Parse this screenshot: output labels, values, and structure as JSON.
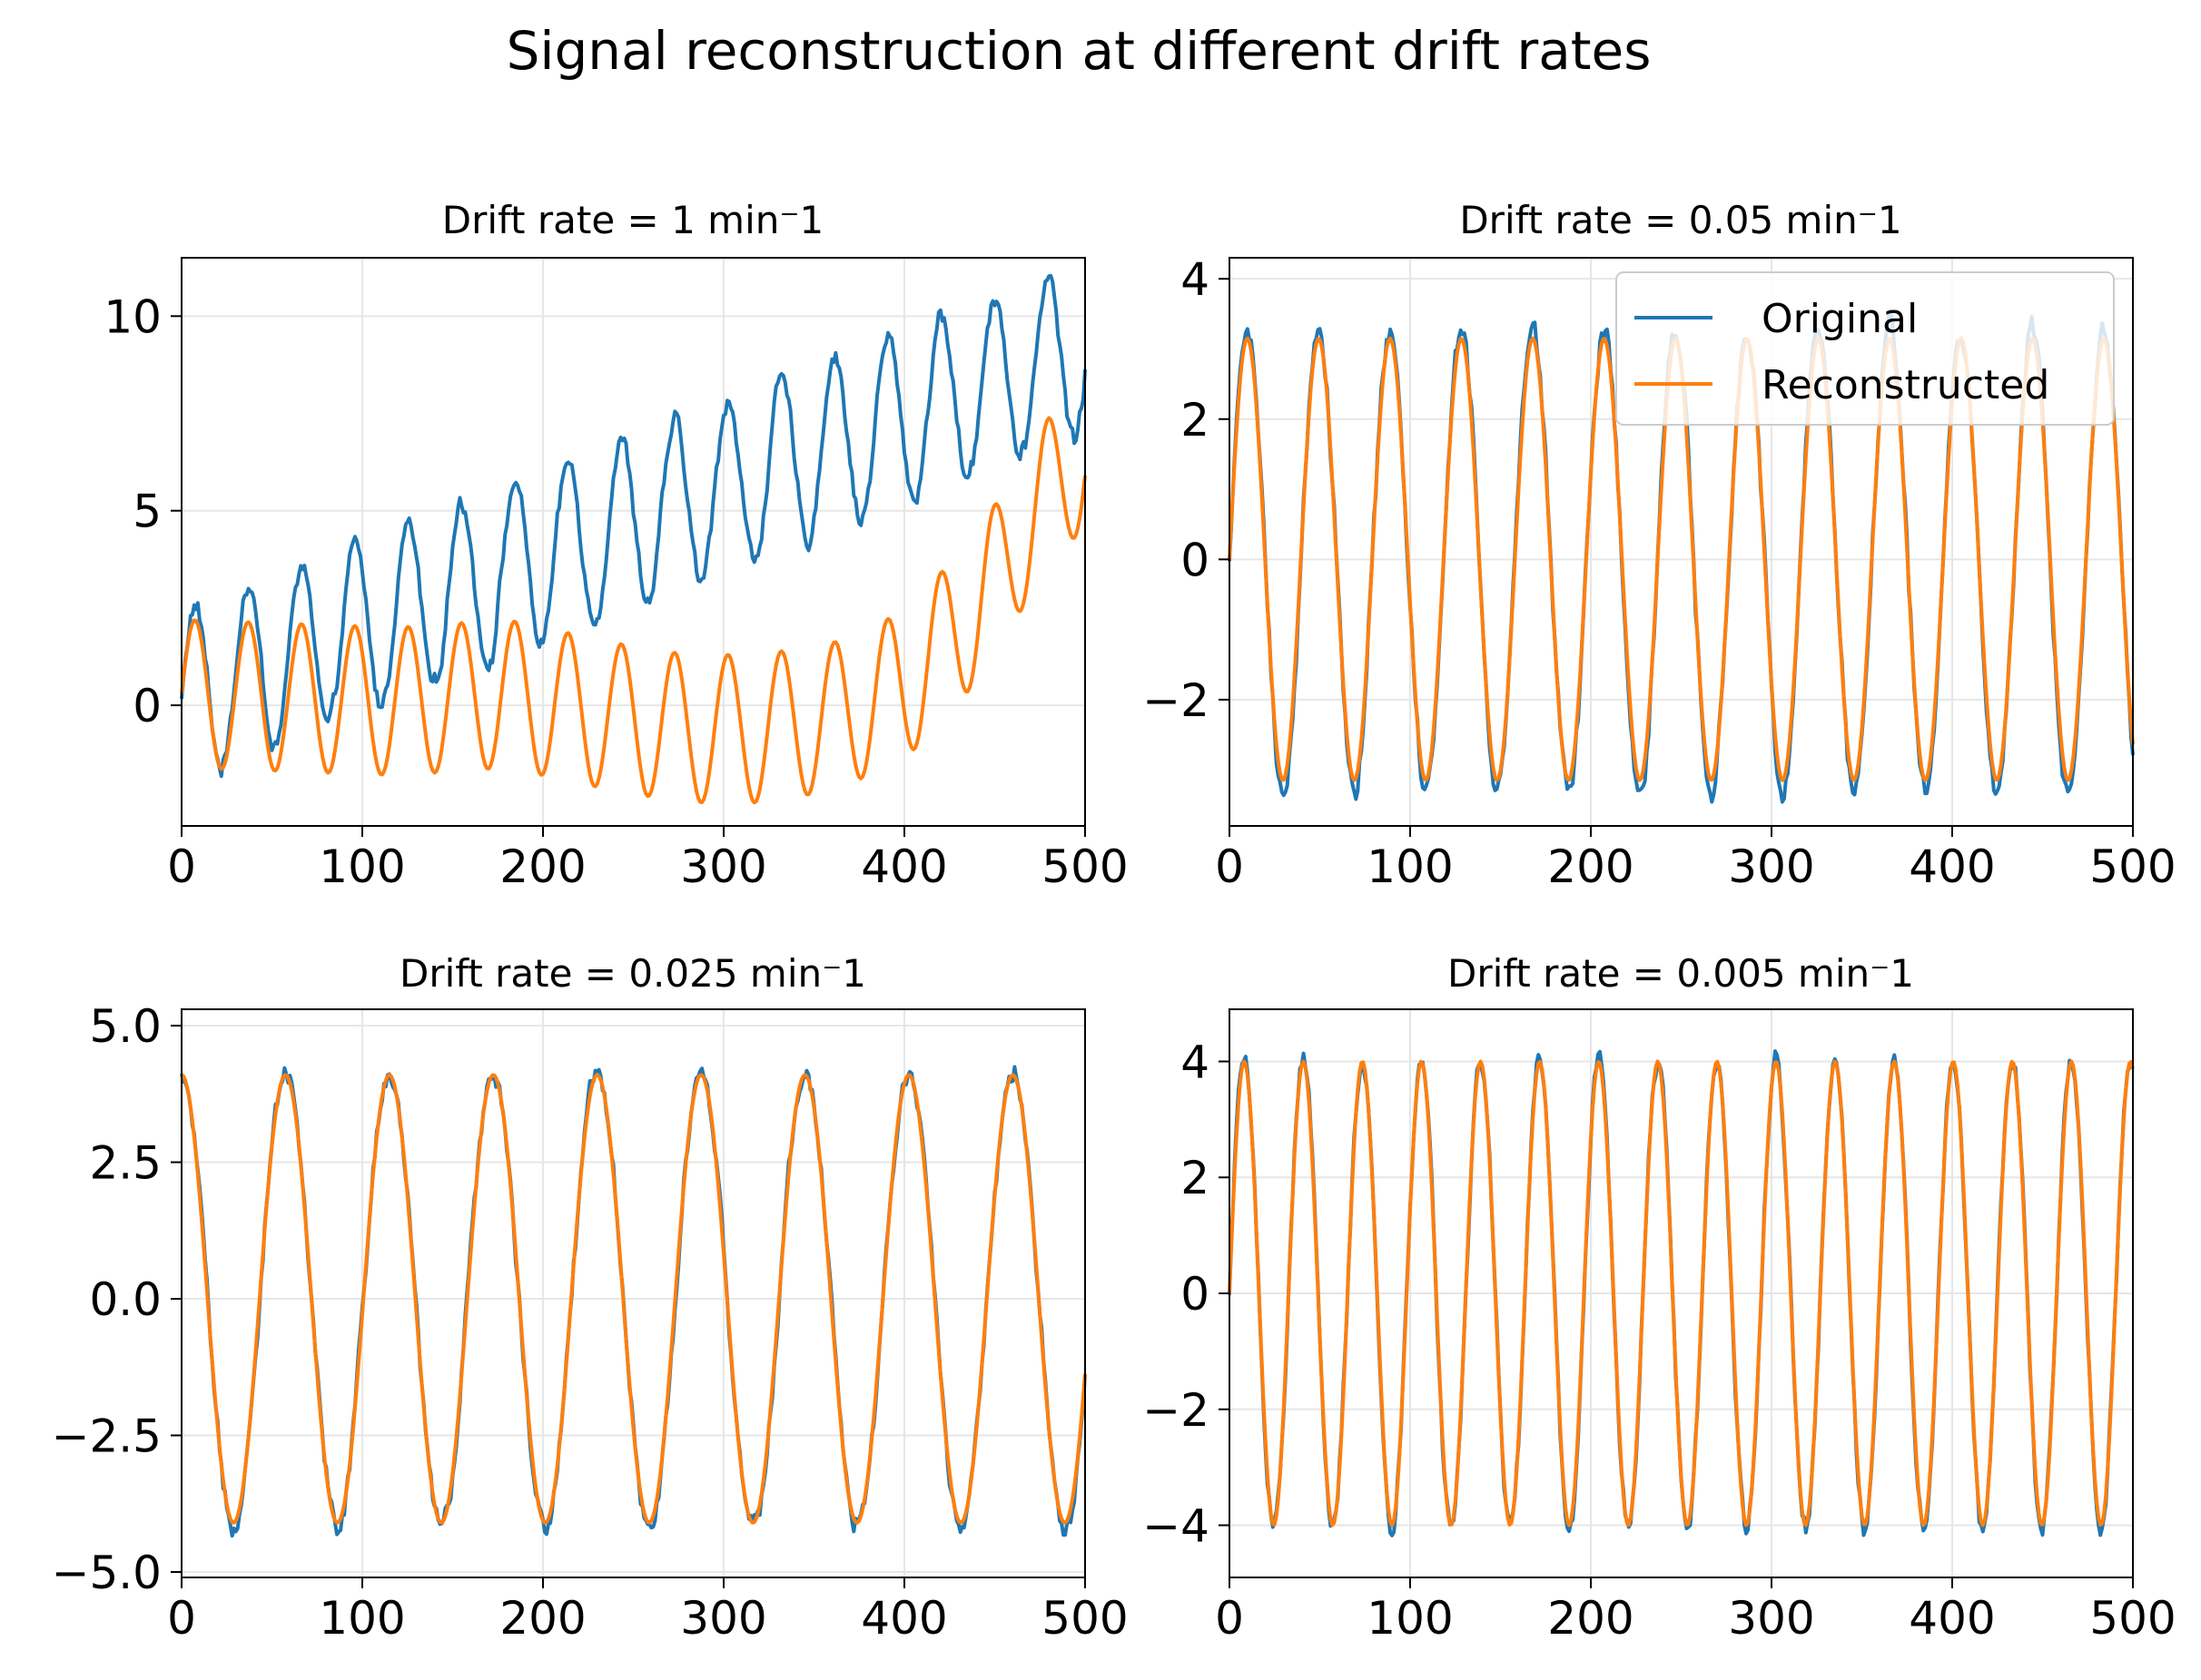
{
  "figure": {
    "title": "Signal reconstruction at different drift rates"
  },
  "colors": {
    "original": "#1f77b4",
    "reconstructed": "#ff7f0e",
    "grid": "#e6e6e6",
    "axis": "#000000"
  },
  "legend": {
    "original": "Original",
    "reconstructed": "Reconstructed"
  },
  "chart_data": [
    {
      "type": "line",
      "title": "Drift rate = 1 min⁻1",
      "xlim": [
        0,
        500
      ],
      "ylim": [
        -3.1,
        11.5
      ],
      "xticks": [
        0,
        100,
        200,
        300,
        400,
        500
      ],
      "yticks": [
        0,
        5,
        10
      ],
      "ytick_labels": [
        "0",
        "5",
        "10"
      ],
      "grid": true,
      "legend": false,
      "original": {
        "name": "Original",
        "drift": 0.018,
        "amp": 2.2,
        "period": 29.5,
        "offset": 0.2,
        "noise": 0.35
      },
      "reconstructed": {
        "name": "Reconstructed",
        "amp": 1.9,
        "period": 29.5,
        "trend_x": [
          0,
          60,
          120,
          180,
          240,
          280,
          320,
          360,
          400,
          440,
          480,
          500
        ],
        "trend_y": [
          0.3,
          0.2,
          0.1,
          0.3,
          -0.3,
          -0.6,
          -0.6,
          -0.3,
          0.5,
          2.5,
          5.5,
          6.5
        ]
      }
    },
    {
      "type": "line",
      "title": "Drift rate = 0.05 min⁻1",
      "xlim": [
        0,
        500
      ],
      "ylim": [
        -3.8,
        4.3
      ],
      "xticks": [
        0,
        100,
        200,
        300,
        400,
        500
      ],
      "yticks": [
        -2,
        0,
        2,
        4
      ],
      "ytick_labels": [
        "−2",
        "0",
        "2",
        "4"
      ],
      "grid": true,
      "legend": true,
      "original": {
        "name": "Original",
        "drift": 0.0,
        "amp": 3.3,
        "period": 39.5,
        "offset": 0.0,
        "noise": 0.25
      },
      "reconstructed": {
        "name": "Reconstructed",
        "amp": 3.15,
        "period": 39.5,
        "trend_x": [
          0,
          500
        ],
        "trend_y": [
          0,
          0
        ]
      }
    },
    {
      "type": "line",
      "title": "Drift rate = 0.025 min⁻1",
      "xlim": [
        0,
        500
      ],
      "ylim": [
        -5.1,
        5.3
      ],
      "xticks": [
        0,
        100,
        200,
        300,
        400,
        500
      ],
      "yticks": [
        -5.0,
        -2.5,
        0.0,
        2.5,
        5.0
      ],
      "ytick_labels": [
        "−5.0",
        "−2.5",
        "0.0",
        "2.5",
        "5.0"
      ],
      "grid": true,
      "legend": false,
      "original": {
        "name": "Original",
        "drift": 0.0,
        "amp": 4.15,
        "period": 57.5,
        "offset": 0.0,
        "noise": 0.28,
        "phase": 1.5708
      },
      "reconstructed": {
        "name": "Reconstructed",
        "amp": 4.1,
        "period": 57.5,
        "phase": 1.5708,
        "trend_x": [
          0,
          500
        ],
        "trend_y": [
          0,
          0
        ]
      }
    },
    {
      "type": "line",
      "title": "Drift rate = 0.005 min⁻1",
      "xlim": [
        0,
        500
      ],
      "ylim": [
        -4.9,
        4.9
      ],
      "xticks": [
        0,
        100,
        200,
        300,
        400,
        500
      ],
      "yticks": [
        -4,
        -2,
        0,
        2,
        4
      ],
      "ytick_labels": [
        "−4",
        "−2",
        "0",
        "2",
        "4"
      ],
      "grid": true,
      "legend": false,
      "original": {
        "name": "Original",
        "drift": 0.0,
        "amp": 4.05,
        "period": 32.7,
        "offset": 0.0,
        "noise": 0.25
      },
      "reconstructed": {
        "name": "Reconstructed",
        "amp": 4.0,
        "period": 32.7,
        "trend_x": [
          0,
          500
        ],
        "trend_y": [
          0,
          0
        ]
      }
    }
  ]
}
